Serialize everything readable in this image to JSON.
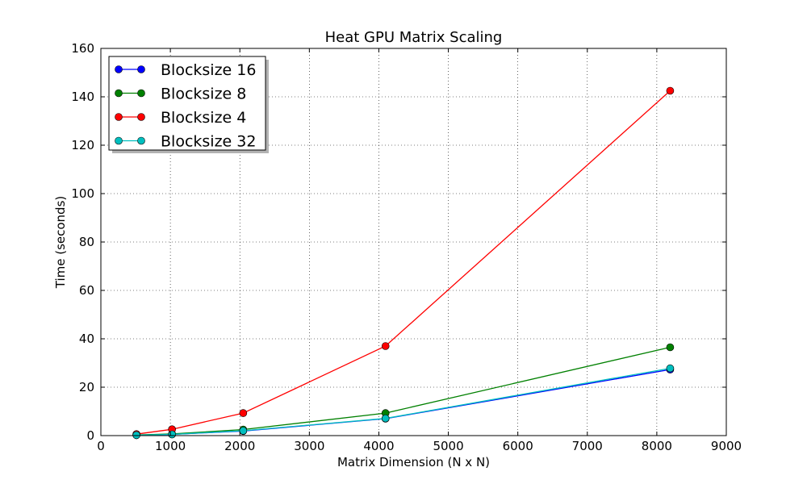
{
  "chart_data": {
    "type": "line",
    "title": "Heat GPU Matrix Scaling",
    "xlabel": "Matrix Dimension (N x N)",
    "ylabel": "Time (seconds)",
    "xlim": [
      0,
      9000
    ],
    "ylim": [
      0,
      160
    ],
    "xticks": [
      0,
      1000,
      2000,
      3000,
      4000,
      5000,
      6000,
      7000,
      8000,
      9000
    ],
    "yticks": [
      0,
      20,
      40,
      60,
      80,
      100,
      120,
      140,
      160
    ],
    "grid": true,
    "legend_position": "top-left",
    "x": [
      512,
      1024,
      2048,
      4096,
      8192
    ],
    "series": [
      {
        "name": "Blocksize 16",
        "color": "#0000ff",
        "values": [
          0.2,
          0.5,
          1.9,
          7.0,
          27.3
        ]
      },
      {
        "name": "Blocksize 8",
        "color": "#008000",
        "values": [
          0.3,
          0.7,
          2.5,
          9.3,
          36.5
        ]
      },
      {
        "name": "Blocksize 4",
        "color": "#ff0000",
        "values": [
          0.6,
          2.6,
          9.3,
          37.0,
          142.5
        ]
      },
      {
        "name": "Blocksize 32",
        "color": "#00bfbf",
        "values": [
          0.2,
          0.5,
          2.0,
          7.1,
          27.8
        ]
      }
    ]
  }
}
